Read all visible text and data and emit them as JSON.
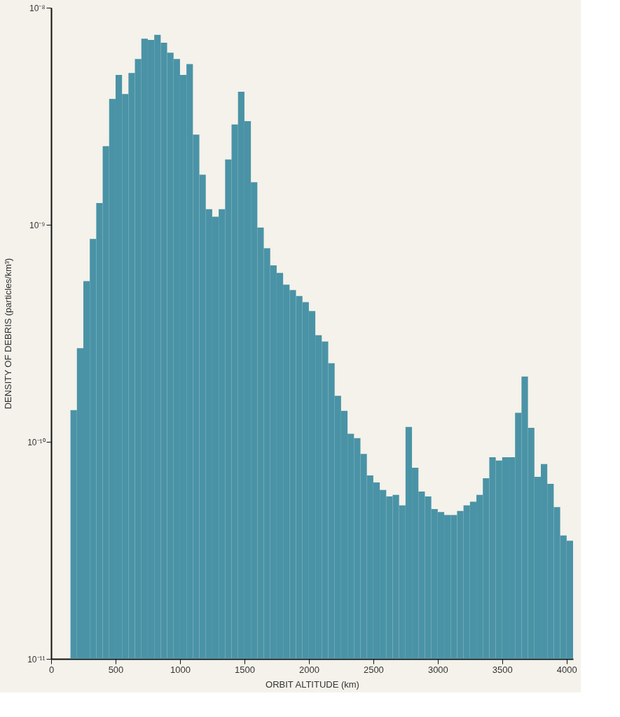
{
  "chart_data": {
    "type": "histogram",
    "xlabel": "ORBIT ALTITUDE (km)",
    "ylabel": "DENSITY OF DEBRIS (particles/km³)",
    "log": true,
    "grid": false,
    "color": "#4a93a6",
    "bins": [
      150,
      200,
      250,
      300,
      350,
      400,
      450,
      500,
      550,
      600,
      650,
      700,
      750,
      800,
      850,
      900,
      950,
      1000,
      1050,
      1100,
      1150,
      1200,
      1250,
      1300,
      1350,
      1400,
      1450,
      1500,
      1550,
      1600,
      1650,
      1700,
      1750,
      1800,
      1850,
      1900,
      1950,
      2000,
      2050,
      2100,
      2150,
      2200,
      2250,
      2300,
      2350,
      2400,
      2450,
      2500,
      2550,
      2600,
      2650,
      2700,
      2750,
      2800,
      2850,
      2900,
      2950,
      3000,
      3050,
      3100,
      3150,
      3200,
      3250,
      3300,
      3350,
      3400,
      3450,
      3500,
      3550,
      3600,
      3650,
      3700,
      3750,
      3800,
      3850,
      3900,
      3950,
      4000,
      4050
    ],
    "values": [
      1.4e-10,
      2.7e-10,
      5.5e-10,
      8.6e-10,
      1.26e-09,
      2.3e-09,
      3.8e-09,
      4.9e-09,
      4e-09,
      5e-09,
      5.8e-09,
      7.2e-09,
      7.1e-09,
      7.5e-09,
      6.9e-09,
      6.2e-09,
      5.8e-09,
      4.9e-09,
      5.5e-09,
      2.6e-09,
      1.7e-09,
      1.18e-09,
      1.09e-09,
      1.18e-09,
      2e-09,
      2.9e-09,
      4.1e-09,
      3e-09,
      1.57e-09,
      9.7e-10,
      7.8e-10,
      6.5e-10,
      6e-10,
      5.3e-10,
      5e-10,
      4.7e-10,
      4.4e-10,
      4e-10,
      3.1e-10,
      2.9e-10,
      2.3e-10,
      1.63e-10,
      1.39e-10,
      1.09e-10,
      1.04e-10,
      8.8e-11,
      7e-11,
      6.5e-11,
      6e-11,
      5.6e-11,
      5.7e-11,
      5.1e-11,
      1.17e-10,
      7.6e-11,
      5.9e-11,
      5.6e-11,
      4.9e-11,
      4.75e-11,
      4.6e-11,
      4.6e-11,
      4.8e-11,
      5.1e-11,
      5.3e-11,
      5.7e-11,
      6.8e-11,
      8.5e-11,
      8.2e-11,
      8.5e-11,
      8.5e-11,
      1.36e-10,
      2e-10,
      1.16e-10,
      6.9e-11,
      7.9e-11,
      6.4e-11,
      5e-11,
      3.7e-11,
      3.5e-11
    ],
    "xlim": [
      0,
      4050
    ],
    "xticks": [
      0,
      500,
      1000,
      1500,
      2000,
      2500,
      3000,
      3500,
      4000
    ],
    "ylim": [
      1e-11,
      1e-08
    ],
    "yticks": [
      {
        "value": 1e-11,
        "label": "10⁻¹¹"
      },
      {
        "value": 1e-10,
        "label": "10⁻¹⁰"
      },
      {
        "value": 1e-09,
        "label": "10⁻⁹"
      },
      {
        "value": 1e-08,
        "label": "10⁻⁸"
      }
    ]
  }
}
